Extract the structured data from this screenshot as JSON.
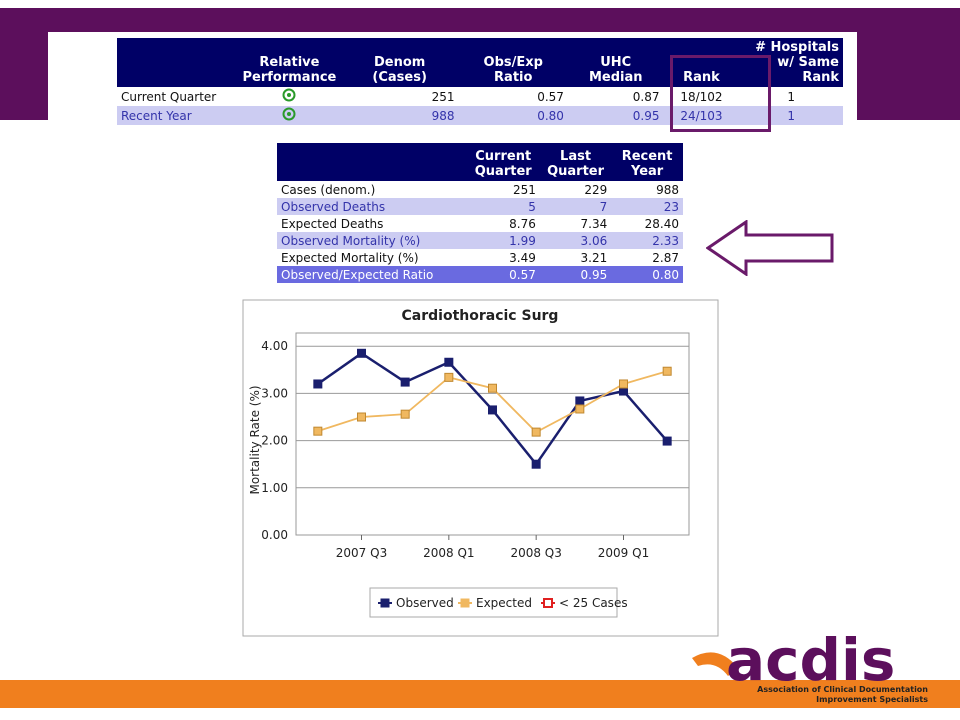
{
  "top_table": {
    "headers": [
      "",
      "Relative Performance",
      "Denom (Cases)",
      "Obs/Exp Ratio",
      "UHC Median",
      "Rank",
      "# Hospitals w/ Same Rank"
    ],
    "rows": [
      [
        "Current Quarter",
        "",
        "251",
        "0.57",
        "0.87",
        "18/102",
        "1"
      ],
      [
        "Recent Year",
        "",
        "988",
        "0.80",
        "0.95",
        "24/103",
        "1"
      ]
    ]
  },
  "middle_table": {
    "headers": [
      "",
      "Current Quarter",
      "Last Quarter",
      "Recent Year"
    ],
    "rows": [
      [
        "Cases (denom.)",
        "251",
        "229",
        "988"
      ],
      [
        "Observed Deaths",
        "5",
        "7",
        "23"
      ],
      [
        "Expected Deaths",
        "8.76",
        "7.34",
        "28.40"
      ],
      [
        "Observed Mortality (%)",
        "1.99",
        "3.06",
        "2.33"
      ],
      [
        "Expected Mortality (%)",
        "3.49",
        "3.21",
        "2.87"
      ],
      [
        "Observed/Expected Ratio",
        "0.57",
        "0.95",
        "0.80"
      ]
    ]
  },
  "chart_data": {
    "type": "line",
    "title": "Cardiothoracic Surg",
    "y_label": "Mortality Rate (%)",
    "categories": [
      null,
      "2007 Q3",
      null,
      "2008 Q1",
      null,
      "2008 Q3",
      null,
      "2009 Q1",
      null
    ],
    "series": [
      {
        "name": "Observed",
        "color": "#1a1f6e",
        "values": [
          3.2,
          3.85,
          3.24,
          3.66,
          2.65,
          1.5,
          2.84,
          3.05,
          1.99
        ]
      },
      {
        "name": "Expected",
        "color": "#f0b860",
        "values": [
          2.2,
          2.5,
          2.56,
          3.34,
          3.11,
          2.18,
          2.67,
          3.2,
          3.47
        ]
      }
    ],
    "legend_extra": [
      {
        "name": "< 25 Cases",
        "color": "#e02020"
      }
    ],
    "ylim": [
      0,
      4.28
    ],
    "yticks": [
      {
        "value": 0,
        "label": "0.00"
      },
      {
        "value": 1,
        "label": "1.00"
      },
      {
        "value": 2,
        "label": "2.00"
      },
      {
        "value": 3,
        "label": "3.00"
      },
      {
        "value": 4,
        "label": "4.00"
      }
    ],
    "grid": true
  },
  "logo": {
    "name": "acdis",
    "tagline_1": "Association of Clinical Documentation",
    "tagline_2": "Improvement Specialists"
  }
}
